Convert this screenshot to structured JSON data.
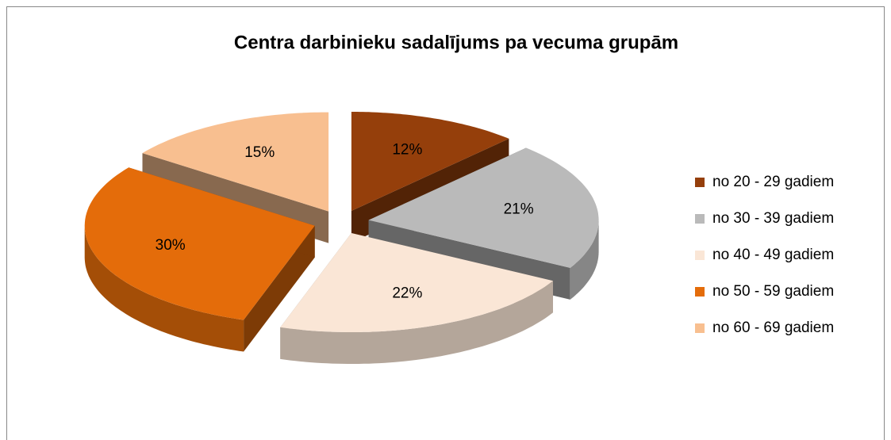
{
  "chart_data": {
    "type": "pie",
    "title": "Centra darbinieku sadalījums pa vecuma grupām",
    "categories": [
      "no 20 - 29 gadiem",
      "no 30 - 39 gadiem",
      "no 40 - 49 gadiem",
      "no 50 - 59 gadiem",
      "no 60 - 69 gadiem"
    ],
    "values": [
      12,
      21,
      22,
      30,
      15
    ],
    "value_labels": [
      "12%",
      "21%",
      "22%",
      "30%",
      "15%"
    ],
    "colors": [
      "#953f0b",
      "#bababa",
      "#fae6d6",
      "#e46c0a",
      "#f8bf90"
    ],
    "legend": "right"
  }
}
